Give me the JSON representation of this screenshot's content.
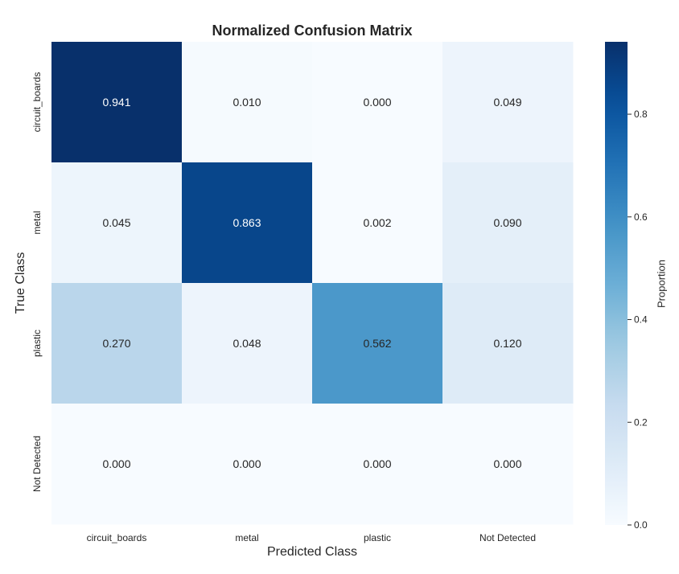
{
  "chart_data": {
    "type": "heatmap",
    "title": "Normalized Confusion Matrix",
    "xlabel": "Predicted Class",
    "ylabel": "True Class",
    "x_categories": [
      "circuit_boards",
      "metal",
      "plastic",
      "Not Detected"
    ],
    "y_categories": [
      "circuit_boards",
      "metal",
      "plastic",
      "Not Detected"
    ],
    "values": [
      [
        0.941,
        0.01,
        0.0,
        0.049
      ],
      [
        0.045,
        0.863,
        0.002,
        0.09
      ],
      [
        0.27,
        0.048,
        0.562,
        0.12
      ],
      [
        0.0,
        0.0,
        0.0,
        0.0
      ]
    ],
    "cell_labels": [
      [
        "0.941",
        "0.010",
        "0.000",
        "0.049"
      ],
      [
        "0.045",
        "0.863",
        "0.002",
        "0.090"
      ],
      [
        "0.270",
        "0.048",
        "0.562",
        "0.120"
      ],
      [
        "0.000",
        "0.000",
        "0.000",
        "0.000"
      ]
    ],
    "colormap": "Blues",
    "colorbar": {
      "label": "Proportion",
      "range": [
        0.0,
        0.941
      ],
      "ticks": [
        0.0,
        0.2,
        0.4,
        0.6,
        0.8
      ],
      "tick_labels": [
        "0.0",
        "0.2",
        "0.4",
        "0.6",
        "0.8"
      ]
    },
    "grid": false
  }
}
